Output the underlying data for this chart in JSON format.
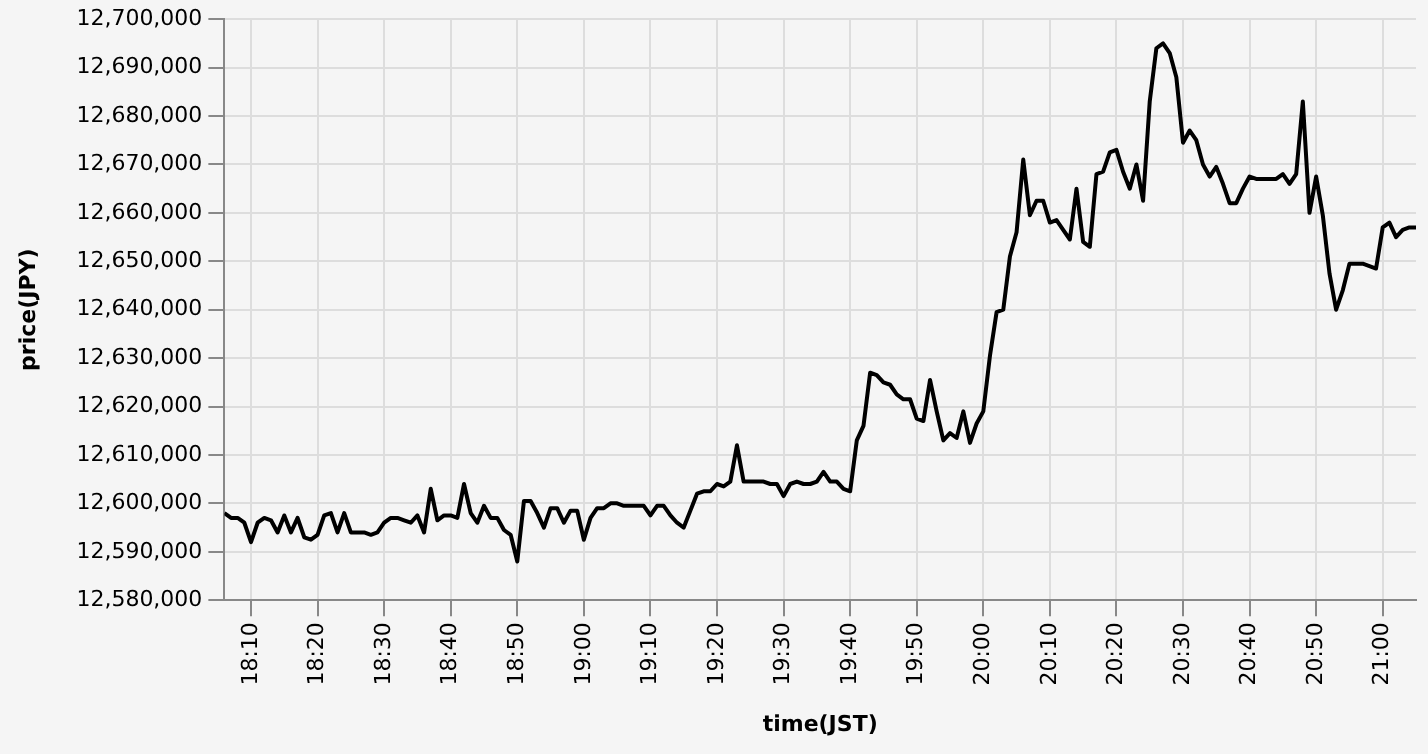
{
  "chart_data": {
    "type": "line",
    "xlabel": "time(JST)",
    "ylabel": "price(JPY)",
    "xlim": [
      18.1,
      21.0833
    ],
    "xticks": [
      {
        "value": 18.1667,
        "label": "18:10"
      },
      {
        "value": 18.3333,
        "label": "18:20"
      },
      {
        "value": 18.5,
        "label": "18:30"
      },
      {
        "value": 18.6667,
        "label": "18:40"
      },
      {
        "value": 18.8333,
        "label": "18:50"
      },
      {
        "value": 19,
        "label": "19:00"
      },
      {
        "value": 19.1667,
        "label": "19:10"
      },
      {
        "value": 19.3333,
        "label": "19:20"
      },
      {
        "value": 19.5,
        "label": "19:30"
      },
      {
        "value": 19.6667,
        "label": "19:40"
      },
      {
        "value": 19.8333,
        "label": "19:50"
      },
      {
        "value": 20,
        "label": "20:00"
      },
      {
        "value": 20.1667,
        "label": "20:10"
      },
      {
        "value": 20.3333,
        "label": "20:20"
      },
      {
        "value": 20.5,
        "label": "20:30"
      },
      {
        "value": 20.6667,
        "label": "20:40"
      },
      {
        "value": 20.8333,
        "label": "20:50"
      },
      {
        "value": 21,
        "label": "21:00"
      }
    ],
    "ylim": [
      12580000,
      12700000
    ],
    "yticks": [
      {
        "value": 12580000,
        "label": "12,580,000"
      },
      {
        "value": 12590000,
        "label": "12,590,000"
      },
      {
        "value": 12600000,
        "label": "12,600,000"
      },
      {
        "value": 12610000,
        "label": "12,610,000"
      },
      {
        "value": 12620000,
        "label": "12,620,000"
      },
      {
        "value": 12630000,
        "label": "12,630,000"
      },
      {
        "value": 12640000,
        "label": "12,640,000"
      },
      {
        "value": 12650000,
        "label": "12,650,000"
      },
      {
        "value": 12660000,
        "label": "12,660,000"
      },
      {
        "value": 12670000,
        "label": "12,670,000"
      },
      {
        "value": 12680000,
        "label": "12,680,000"
      },
      {
        "value": 12690000,
        "label": "12,690,000"
      },
      {
        "value": 12700000,
        "label": "12,700,000"
      }
    ],
    "grid": true,
    "legend": false,
    "marker": "none",
    "line_style": "solid",
    "x": [
      18.1,
      18.1167,
      18.1333,
      18.15,
      18.1667,
      18.1833,
      18.2,
      18.2167,
      18.2333,
      18.25,
      18.2667,
      18.2833,
      18.3,
      18.3167,
      18.3333,
      18.35,
      18.3667,
      18.3833,
      18.4,
      18.4167,
      18.4333,
      18.45,
      18.4667,
      18.4833,
      18.5,
      18.5167,
      18.5333,
      18.55,
      18.5667,
      18.5833,
      18.6,
      18.6167,
      18.6333,
      18.65,
      18.6667,
      18.6833,
      18.7,
      18.7167,
      18.7333,
      18.75,
      18.7667,
      18.7833,
      18.8,
      18.8167,
      18.8333,
      18.85,
      18.8667,
      18.8833,
      18.9,
      18.9167,
      18.9333,
      18.95,
      18.9667,
      18.9833,
      19,
      19.0167,
      19.0333,
      19.05,
      19.0667,
      19.0833,
      19.1,
      19.1167,
      19.1333,
      19.15,
      19.1667,
      19.1833,
      19.2,
      19.2167,
      19.2333,
      19.25,
      19.2667,
      19.2833,
      19.3,
      19.3167,
      19.3333,
      19.35,
      19.3667,
      19.3833,
      19.4,
      19.4167,
      19.4333,
      19.45,
      19.4667,
      19.4833,
      19.5,
      19.5167,
      19.5333,
      19.55,
      19.5667,
      19.5833,
      19.6,
      19.6167,
      19.6333,
      19.65,
      19.6667,
      19.6833,
      19.7,
      19.7167,
      19.7333,
      19.75,
      19.7667,
      19.7833,
      19.8,
      19.8167,
      19.8333,
      19.85,
      19.8667,
      19.8833,
      19.9,
      19.9167,
      19.9333,
      19.95,
      19.9667,
      19.9833,
      20,
      20.0167,
      20.0333,
      20.05,
      20.0667,
      20.0833,
      20.1,
      20.1167,
      20.1333,
      20.15,
      20.1667,
      20.1833,
      20.2,
      20.2167,
      20.2333,
      20.25,
      20.2667,
      20.2833,
      20.3,
      20.3167,
      20.3333,
      20.35,
      20.3667,
      20.3833,
      20.4,
      20.4167,
      20.4333,
      20.45,
      20.4667,
      20.4833,
      20.5,
      20.5167,
      20.5333,
      20.55,
      20.5667,
      20.5833,
      20.6,
      20.6167,
      20.6333,
      20.65,
      20.6667,
      20.6833,
      20.7,
      20.7167,
      20.7333,
      20.75,
      20.7667,
      20.7833,
      20.8,
      20.8167,
      20.8333,
      20.85,
      20.8667,
      20.8833,
      20.9,
      20.9167,
      20.9333,
      20.95,
      20.9667,
      20.9833,
      21,
      21.0167,
      21.0333,
      21.05,
      21.0667,
      21.0833
    ],
    "series": [
      {
        "color": "#000000",
        "values": [
          12598000,
          12597000,
          12597000,
          12596000,
          12592000,
          12596000,
          12597000,
          12596500,
          12594000,
          12597500,
          12594000,
          12597000,
          12593000,
          12592500,
          12593500,
          12597500,
          12598000,
          12594000,
          12598000,
          12594000,
          12594000,
          12594000,
          12593500,
          12594000,
          12596000,
          12597000,
          12597000,
          12596500,
          12596000,
          12597500,
          12594000,
          12603000,
          12596500,
          12597500,
          12597500,
          12597000,
          12604000,
          12598000,
          12596000,
          12599500,
          12597000,
          12597000,
          12594500,
          12593500,
          12588000,
          12600500,
          12600500,
          12598000,
          12595000,
          12599000,
          12599000,
          12596000,
          12598500,
          12598500,
          12592500,
          12597000,
          12599000,
          12599000,
          12600000,
          12600000,
          12599500,
          12599500,
          12599500,
          12599500,
          12597500,
          12599500,
          12599500,
          12597500,
          12596000,
          12595000,
          12598500,
          12602000,
          12602500,
          12602500,
          12604000,
          12603500,
          12604500,
          12612000,
          12604500,
          12604500,
          12604500,
          12604500,
          12604000,
          12604000,
          12601500,
          12604000,
          12604500,
          12604000,
          12604000,
          12604500,
          12606500,
          12604500,
          12604500,
          12603000,
          12602500,
          12613000,
          12616000,
          12627000,
          12626500,
          12625000,
          12624500,
          12622500,
          12621500,
          12621500,
          12617500,
          12617000,
          12625500,
          12619000,
          12613000,
          12614500,
          12613500,
          12619000,
          12612500,
          12616500,
          12619000,
          12630500,
          12639500,
          12640000,
          12651000,
          12656000,
          12671000,
          12659500,
          12662500,
          12662500,
          12658000,
          12658500,
          12656500,
          12654500,
          12665000,
          12654000,
          12653000,
          12668000,
          12668500,
          12672500,
          12673000,
          12668500,
          12665000,
          12670000,
          12662500,
          12683000,
          12694000,
          12695000,
          12693000,
          12688000,
          12674500,
          12677000,
          12675000,
          12670000,
          12667500,
          12669500,
          12666000,
          12662000,
          12662000,
          12665000,
          12667500,
          12667000,
          12667000,
          12667000,
          12667000,
          12668000,
          12666000,
          12668000,
          12683000,
          12660000,
          12667500,
          12659500,
          12647500,
          12640000,
          12644000,
          12649500,
          12649500,
          12649500,
          12649000,
          12648500,
          12657000,
          12658000,
          12655000,
          12656500,
          12657000,
          12657000
        ]
      }
    ]
  }
}
